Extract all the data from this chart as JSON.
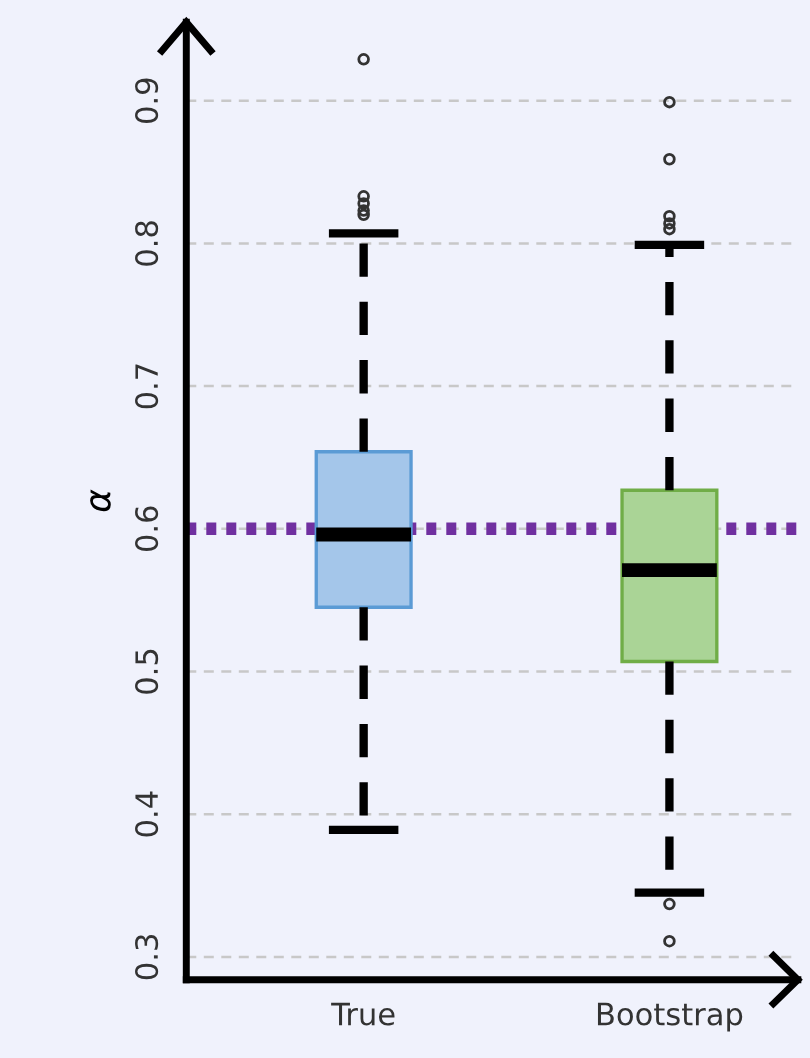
{
  "chart_data": {
    "type": "box",
    "ylabel": "α",
    "categories": [
      "True",
      "Bootstrap"
    ],
    "boxes": [
      {
        "low": 0.389,
        "q1": 0.545,
        "median": 0.596,
        "q3": 0.654,
        "high": 0.807,
        "outliers": [
          0.929,
          0.833,
          0.828,
          0.823,
          0.82
        ]
      },
      {
        "low": 0.345,
        "q1": 0.507,
        "median": 0.571,
        "q3": 0.627,
        "high": 0.799,
        "outliers": [
          0.899,
          0.859,
          0.819,
          0.814,
          0.81,
          0.337,
          0.311
        ]
      }
    ],
    "colors": [
      "#a4c6ea",
      "#aad496"
    ],
    "ylim": [
      0.284,
      0.955
    ],
    "yticks": [
      0.3,
      0.4,
      0.5,
      0.6,
      0.7,
      0.8,
      0.9
    ],
    "ref_lines": [
      {
        "axis": "y",
        "value": 0.6,
        "color": "#7030a0",
        "line_style": "dotted"
      }
    ],
    "grid": "y"
  }
}
